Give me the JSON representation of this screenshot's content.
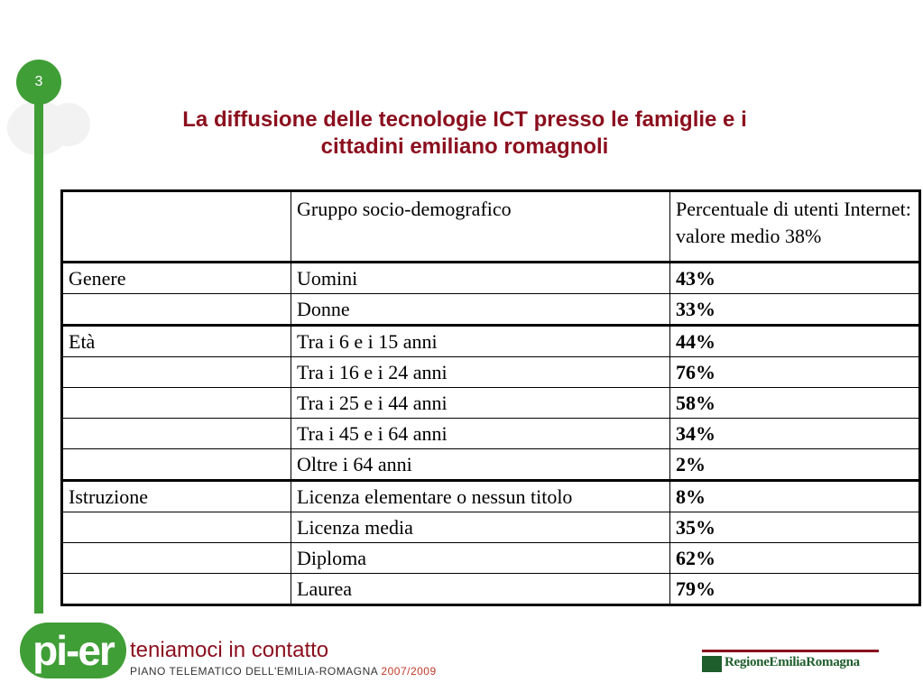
{
  "slide": {
    "number": "3"
  },
  "title": {
    "line1": "La diffusione delle tecnologie ICT presso le famiglie e i",
    "line2": "cittadini emiliano romagnoli"
  },
  "table": {
    "header": {
      "col1": "",
      "col2": "Gruppo socio-demografico",
      "col3_line1": "Percentuale di utenti Internet:",
      "col3_line2": "valore medio 38%"
    },
    "rows": [
      {
        "group": "Genere",
        "label": "Uomini",
        "value": "43%"
      },
      {
        "group": "",
        "label": "Donne",
        "value": "33%"
      },
      {
        "group": "Età",
        "label": "Tra i 6 e i 15 anni",
        "value": "44%"
      },
      {
        "group": "",
        "label": "Tra i 16 e i 24 anni",
        "value": "76%"
      },
      {
        "group": "",
        "label": "Tra i 25 e i 44 anni",
        "value": "58%"
      },
      {
        "group": "",
        "label": "Tra i 45 e i 64 anni",
        "value": "34%"
      },
      {
        "group": "",
        "label": "Oltre i 64 anni",
        "value": "2%"
      },
      {
        "group": "Istruzione",
        "label": "Licenza elementare o nessun titolo",
        "value": "8%"
      },
      {
        "group": "",
        "label": "Licenza media",
        "value": "35%"
      },
      {
        "group": "",
        "label": "Diploma",
        "value": "62%"
      },
      {
        "group": "",
        "label": "Laurea",
        "value": "79%"
      }
    ]
  },
  "footer": {
    "logo_text": "pi-er",
    "slogan": "teniamoci in contatto",
    "subtitle": "PIANO TELEMATICO DELL'EMILIA-ROMAGNA",
    "years": "2007/2009",
    "region_text": "RegioneEmiliaRomagna"
  },
  "colors": {
    "accent_green": "#3f9e36",
    "title_red": "#8b0f1e"
  }
}
